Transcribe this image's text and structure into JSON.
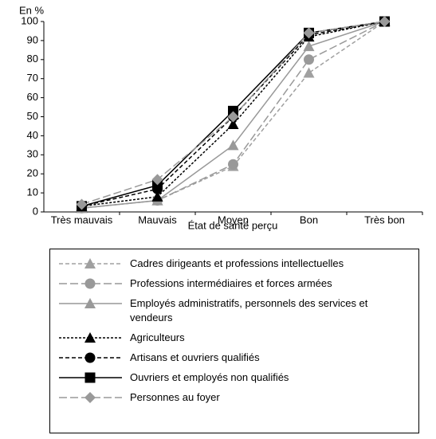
{
  "chart_data": {
    "type": "line",
    "y_axis_label": "En %",
    "x_axis_label": "État de santé perçu",
    "categories": [
      "Très mauvais",
      "Mauvais",
      "Moyen",
      "Bon",
      "Très bon"
    ],
    "ylim": [
      0,
      100
    ],
    "yticks": [
      0,
      10,
      20,
      30,
      40,
      50,
      60,
      70,
      80,
      90,
      100
    ],
    "grid": false,
    "series": [
      {
        "name": "Cadres dirigeants et professions intellectuelles",
        "color": "#a0a0a0",
        "line_style": "dashed",
        "marker": "triangle",
        "values": [
          2,
          6,
          24,
          73,
          100
        ]
      },
      {
        "name": "Professions intermédiaires et forces armées",
        "color": "#999999",
        "line_style": "long-dashed",
        "marker": "circle",
        "values": [
          2,
          6,
          25,
          80,
          100
        ]
      },
      {
        "name": "Employés administratifs, personnels des services et vendeurs",
        "color": "#999999",
        "line_style": "solid",
        "marker": "triangle",
        "values": [
          2,
          6,
          35,
          87,
          100
        ]
      },
      {
        "name": "Agriculteurs",
        "color": "#000000",
        "line_style": "dotted",
        "marker": "triangle",
        "values": [
          3,
          8,
          46,
          92,
          100
        ]
      },
      {
        "name": "Artisans et ouvriers qualifiés",
        "color": "#000000",
        "line_style": "dashed",
        "marker": "circle",
        "values": [
          3,
          12,
          50,
          93,
          100
        ]
      },
      {
        "name": "Ouvriers et employés non qualifiés",
        "color": "#000000",
        "line_style": "solid",
        "marker": "square",
        "values": [
          3,
          14,
          53,
          94,
          100
        ]
      },
      {
        "name": "Personnes au foyer",
        "color": "#999999",
        "line_style": "long-dashed",
        "marker": "diamond",
        "values": [
          4,
          17,
          50,
          94,
          100
        ]
      }
    ]
  }
}
